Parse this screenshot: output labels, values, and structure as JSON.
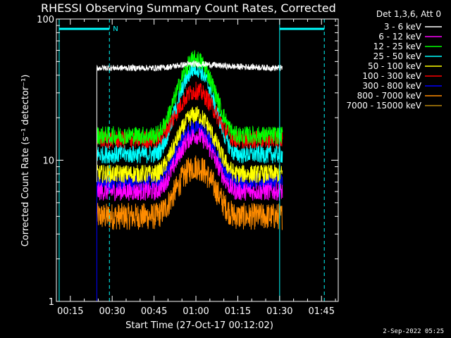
{
  "chart_data": {
    "type": "line",
    "title": "RHESSI Observing Summary Count Rates, Corrected",
    "xlabel": "Start Time (27-Oct-17 00:12:02)",
    "ylabel": "Corrected Count Rate (s⁻¹ detector⁻¹)",
    "y_scale": "log",
    "ylim": [
      1,
      100
    ],
    "xlim": [
      "00:10",
      "01:51"
    ],
    "x_ticks": [
      "00:15",
      "00:30",
      "00:45",
      "01:00",
      "01:15",
      "01:30",
      "01:45"
    ],
    "y_ticks": [
      "1",
      "10",
      "100"
    ],
    "legend_header": "Det 1,3,6, Att 0",
    "legend_position": "top-right",
    "data_start": "00:24:30",
    "data_end": "01:31:00",
    "peak_time": "01:00",
    "series": [
      {
        "name": "3 - 6 keV",
        "color": "#ffffff",
        "values": [
          {
            "t": "00:25",
            "y": 45
          },
          {
            "t": "00:45",
            "y": 45
          },
          {
            "t": "01:00",
            "y": 48
          },
          {
            "t": "01:15",
            "y": 46
          },
          {
            "t": "01:30",
            "y": 45
          }
        ]
      },
      {
        "name": "6 - 12 keV",
        "color": "#ff00ff",
        "values": [
          {
            "t": "00:25",
            "y": 6
          },
          {
            "t": "00:45",
            "y": 6
          },
          {
            "t": "01:00",
            "y": 15
          },
          {
            "t": "01:15",
            "y": 6
          },
          {
            "t": "01:30",
            "y": 6
          }
        ]
      },
      {
        "name": "12 - 25 keV",
        "color": "#00ff00",
        "values": [
          {
            "t": "00:25",
            "y": 15
          },
          {
            "t": "00:45",
            "y": 15
          },
          {
            "t": "01:00",
            "y": 52
          },
          {
            "t": "01:15",
            "y": 15
          },
          {
            "t": "01:30",
            "y": 15
          }
        ]
      },
      {
        "name": "25 - 50 keV",
        "color": "#00ffff",
        "values": [
          {
            "t": "00:25",
            "y": 11
          },
          {
            "t": "00:45",
            "y": 11
          },
          {
            "t": "01:00",
            "y": 45
          },
          {
            "t": "01:15",
            "y": 11
          },
          {
            "t": "01:30",
            "y": 11
          }
        ]
      },
      {
        "name": "50 - 100 keV",
        "color": "#ffff00",
        "values": [
          {
            "t": "00:25",
            "y": 8
          },
          {
            "t": "00:45",
            "y": 8
          },
          {
            "t": "01:00",
            "y": 21
          },
          {
            "t": "01:15",
            "y": 8
          },
          {
            "t": "01:30",
            "y": 8
          }
        ]
      },
      {
        "name": "100 - 300 keV",
        "color": "#ff0000",
        "values": [
          {
            "t": "00:25",
            "y": 14
          },
          {
            "t": "00:45",
            "y": 14
          },
          {
            "t": "01:00",
            "y": 31
          },
          {
            "t": "01:15",
            "y": 14
          },
          {
            "t": "01:30",
            "y": 14
          }
        ]
      },
      {
        "name": "300 - 800 keV",
        "color": "#0000ff",
        "values": [
          {
            "t": "00:25",
            "y": 7
          },
          {
            "t": "00:45",
            "y": 7
          },
          {
            "t": "01:00",
            "y": 17
          },
          {
            "t": "01:15",
            "y": 7
          },
          {
            "t": "01:30",
            "y": 7
          }
        ]
      },
      {
        "name": "800 - 7000 keV",
        "color": "#ff8c00",
        "values": [
          {
            "t": "00:25",
            "y": 4
          },
          {
            "t": "00:45",
            "y": 4
          },
          {
            "t": "01:00",
            "y": 9
          },
          {
            "t": "01:15",
            "y": 4
          },
          {
            "t": "01:30",
            "y": 4
          }
        ]
      },
      {
        "name": "7000 - 15000 keV",
        "color": "#b8860b",
        "values": []
      }
    ],
    "annotations": {
      "flag_label": "N",
      "cyan_solid_times": [
        "00:11",
        "01:30"
      ],
      "cyan_dashed_times": [
        "00:29",
        "01:46"
      ],
      "flag_bars": [
        [
          "00:11",
          "00:29"
        ],
        [
          "01:30",
          "01:46"
        ]
      ]
    }
  },
  "footer": {
    "timestamp": "2-Sep-2022 05:25"
  }
}
